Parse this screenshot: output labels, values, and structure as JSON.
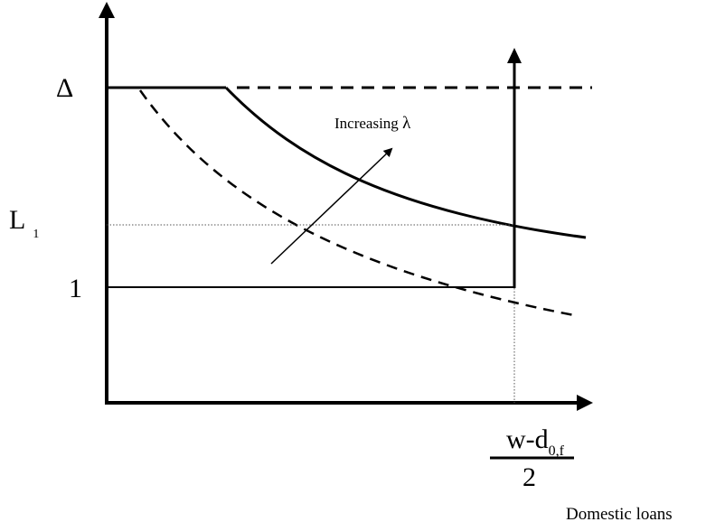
{
  "labels": {
    "delta": "Δ",
    "l1_main": "L",
    "l1_sub": "1",
    "one": "1",
    "annotation_prefix": "Increasing ",
    "annotation_symbol": "λ",
    "frac_w": "w-d",
    "frac_sub": "0,f",
    "frac_den": "2",
    "x_axis_label": "Domestic loans"
  },
  "colors": {
    "line": "#000000",
    "guide": "#555555",
    "background": "#ffffff"
  }
}
